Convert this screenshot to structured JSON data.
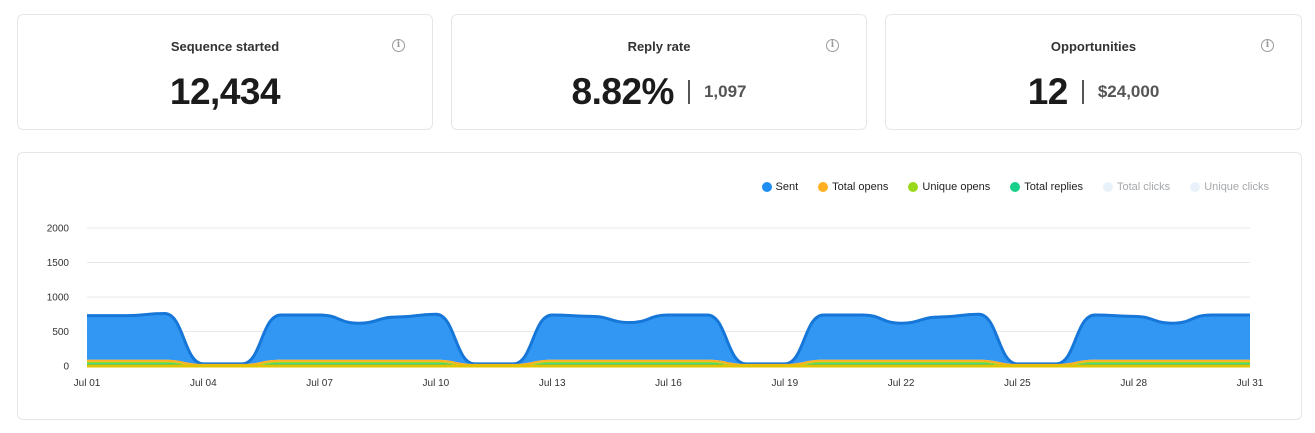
{
  "stats": [
    {
      "title": "Sequence started",
      "value": "12,434",
      "sub": ""
    },
    {
      "title": "Reply rate",
      "value": "8.82%",
      "sub": "1,097"
    },
    {
      "title": "Opportunities",
      "value": "12",
      "sub": "$24,000"
    }
  ],
  "info_icon_glyph": "i",
  "legend": [
    {
      "name": "Sent",
      "color": "#1f8ef1",
      "active": true
    },
    {
      "name": "Total opens",
      "color": "#ffb020",
      "active": true
    },
    {
      "name": "Unique opens",
      "color": "#9ad919",
      "active": true
    },
    {
      "name": "Total replies",
      "color": "#18d08a",
      "active": true
    },
    {
      "name": "Total clicks",
      "color": "#e9f2fb",
      "active": false
    },
    {
      "name": "Unique clicks",
      "color": "#e9f2fb",
      "active": false
    }
  ],
  "chart_data": {
    "type": "area",
    "stacked": true,
    "x": [
      "Jul 01",
      "Jul 02",
      "Jul 03",
      "Jul 04",
      "Jul 05",
      "Jul 06",
      "Jul 07",
      "Jul 08",
      "Jul 09",
      "Jul 10",
      "Jul 11",
      "Jul 12",
      "Jul 13",
      "Jul 14",
      "Jul 15",
      "Jul 16",
      "Jul 17",
      "Jul 18",
      "Jul 19",
      "Jul 20",
      "Jul 21",
      "Jul 22",
      "Jul 23",
      "Jul 24",
      "Jul 25",
      "Jul 26",
      "Jul 27",
      "Jul 28",
      "Jul 29",
      "Jul 30",
      "Jul 31"
    ],
    "x_tick_labels": [
      "Jul 01",
      "Jul 04",
      "Jul 07",
      "Jul 10",
      "Jul 13",
      "Jul 16",
      "Jul 19",
      "Jul 22",
      "Jul 25",
      "Jul 28",
      "Jul 31"
    ],
    "y_ticks": [
      0,
      500,
      1000,
      1500,
      2000
    ],
    "ylim": [
      0,
      2000
    ],
    "grid": true,
    "legend_position": "top-right",
    "series": [
      {
        "name": "Total replies",
        "color": "#18d08a",
        "values": [
          40,
          40,
          40,
          0,
          0,
          40,
          40,
          40,
          40,
          40,
          0,
          0,
          40,
          40,
          40,
          40,
          40,
          0,
          0,
          40,
          40,
          40,
          40,
          40,
          0,
          0,
          40,
          40,
          40,
          40,
          40
        ]
      },
      {
        "name": "Unique opens",
        "color": "#9ad919",
        "values": [
          20,
          20,
          20,
          0,
          0,
          20,
          20,
          20,
          20,
          20,
          0,
          0,
          20,
          20,
          20,
          20,
          20,
          0,
          0,
          20,
          20,
          20,
          20,
          20,
          0,
          0,
          20,
          20,
          20,
          20,
          20
        ]
      },
      {
        "name": "Total opens",
        "color": "#ffb020",
        "values": [
          30,
          30,
          30,
          30,
          30,
          30,
          30,
          30,
          30,
          30,
          30,
          30,
          30,
          30,
          30,
          30,
          30,
          30,
          30,
          30,
          30,
          30,
          30,
          30,
          30,
          30,
          30,
          30,
          30,
          30,
          30
        ]
      },
      {
        "name": "Sent",
        "color": "#1f8ef1",
        "values": [
          640,
          640,
          670,
          0,
          0,
          650,
          650,
          530,
          620,
          660,
          0,
          0,
          650,
          630,
          540,
          650,
          650,
          0,
          0,
          650,
          650,
          530,
          620,
          660,
          0,
          0,
          650,
          630,
          530,
          650,
          650
        ]
      }
    ]
  }
}
